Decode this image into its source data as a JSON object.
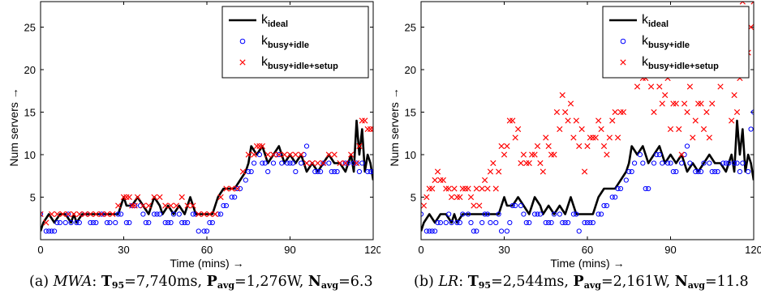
{
  "chart_data": [
    {
      "type": "line",
      "xlabel": "Time (mins) →",
      "ylabel": "Num servers →",
      "xlim": [
        0,
        120
      ],
      "ylim": [
        0,
        28
      ],
      "xticks": [
        0,
        30,
        60,
        90,
        120
      ],
      "yticks": [
        5,
        10,
        15,
        20,
        25
      ],
      "legend_position": "top-right",
      "legend": [
        {
          "main": "k",
          "sub": "ideal",
          "marker": "line",
          "color": "#000000"
        },
        {
          "main": "k",
          "sub": "busy+idle",
          "marker": "circle",
          "color": "#0000ff"
        },
        {
          "main": "k",
          "sub": "busy+idle+setup",
          "marker": "x",
          "color": "#ff0000"
        }
      ],
      "series": [
        {
          "name": "k_ideal",
          "marker": "line",
          "color": "#000000",
          "x": [
            0,
            1,
            3,
            5,
            7,
            9,
            11,
            12,
            13,
            15,
            16,
            18,
            20,
            22,
            24,
            26,
            28,
            30,
            31,
            33,
            35,
            37,
            39,
            41,
            43,
            44,
            46,
            48,
            50,
            52,
            54,
            56,
            58,
            60,
            62,
            64,
            66,
            68,
            70,
            72,
            74,
            75,
            76,
            78,
            80,
            82,
            84,
            86,
            88,
            90,
            92,
            94,
            96,
            98,
            100,
            102,
            104,
            106,
            108,
            110,
            112,
            113,
            114,
            115,
            116,
            117,
            118,
            119,
            120
          ],
          "y": [
            1,
            2,
            3,
            2,
            3,
            3,
            2,
            3,
            2,
            3,
            3,
            3,
            3,
            3,
            3,
            3,
            3,
            5,
            4,
            4,
            5,
            4,
            3,
            5,
            4,
            3,
            4,
            3,
            4,
            3,
            5,
            3,
            3,
            3,
            3,
            5,
            6,
            6,
            6,
            7,
            8,
            9,
            11,
            10,
            11,
            9,
            10,
            11,
            9,
            10,
            9,
            10,
            8,
            9,
            8,
            9,
            10,
            9,
            9,
            8,
            10,
            8,
            14,
            10,
            13,
            8,
            10,
            9,
            7
          ]
        },
        {
          "name": "k_busy+idle",
          "marker": "circle",
          "color": "#0000ff",
          "x": [
            0,
            2,
            3,
            4,
            5,
            6,
            7,
            9,
            10,
            11,
            13,
            14,
            15,
            17,
            18,
            19,
            20,
            22,
            23,
            24,
            25,
            27,
            28,
            29,
            31,
            32,
            33,
            34,
            36,
            37,
            38,
            39,
            41,
            42,
            43,
            45,
            46,
            47,
            48,
            50,
            51,
            52,
            53,
            55,
            56,
            57,
            59,
            60,
            61,
            62,
            64,
            65,
            66,
            67,
            69,
            70,
            71,
            72,
            74,
            75,
            76,
            77,
            79,
            80,
            81,
            82,
            84,
            85,
            86,
            87,
            89,
            90,
            91,
            92,
            94,
            95,
            96,
            97,
            99,
            100,
            101,
            102,
            104,
            105,
            106,
            107,
            109,
            110,
            111,
            113,
            114,
            115,
            116,
            118,
            119,
            120
          ],
          "x_note": "",
          "y": [
            3,
            1,
            1,
            1,
            1,
            2,
            2,
            2,
            3,
            2,
            2,
            2,
            3,
            3,
            2,
            2,
            2,
            3,
            3,
            2,
            2,
            2,
            3,
            3,
            2,
            2,
            4,
            4,
            4,
            3,
            2,
            2,
            3,
            3,
            3,
            2,
            2,
            2,
            3,
            3,
            2,
            2,
            2,
            3,
            3,
            1,
            1,
            1,
            2,
            2,
            3,
            3,
            4,
            4,
            5,
            5,
            6,
            6,
            7,
            8,
            8,
            9,
            10,
            9,
            9,
            8,
            9,
            10,
            10,
            9,
            9,
            9,
            9,
            8,
            9,
            10,
            11,
            9,
            8,
            8,
            8,
            9,
            9,
            8,
            8,
            8,
            9,
            9,
            9,
            9,
            9,
            8,
            9,
            8,
            8,
            8
          ]
        },
        {
          "name": "k_busy+idle+setup",
          "marker": "x",
          "color": "#ff0000",
          "x": [
            0,
            2,
            4,
            6,
            8,
            10,
            12,
            14,
            16,
            18,
            20,
            22,
            24,
            26,
            28,
            30,
            31,
            32,
            33,
            34,
            35,
            37,
            39,
            41,
            43,
            45,
            47,
            49,
            51,
            53,
            55,
            57,
            59,
            61,
            63,
            65,
            67,
            69,
            71,
            73,
            75,
            77,
            78,
            79,
            80,
            82,
            84,
            86,
            88,
            90,
            92,
            94,
            96,
            98,
            100,
            102,
            104,
            106,
            108,
            110,
            112,
            114,
            115,
            116,
            117,
            118,
            119,
            120
          ],
          "y": [
            3,
            2,
            3,
            3,
            3,
            3,
            3,
            3,
            3,
            3,
            3,
            3,
            3,
            3,
            4,
            5,
            5,
            5,
            4,
            4,
            5,
            4,
            4,
            5,
            5,
            4,
            4,
            4,
            5,
            4,
            4,
            3,
            3,
            3,
            3,
            5,
            6,
            6,
            6,
            8,
            10,
            10,
            11,
            11,
            11,
            10,
            10,
            10,
            10,
            10,
            10,
            10,
            9,
            9,
            9,
            9,
            10,
            10,
            9,
            9,
            10,
            9,
            11,
            14,
            14,
            13,
            13,
            13
          ]
        }
      ]
    },
    {
      "type": "line",
      "xlabel": "Time (mins) →",
      "ylabel": "Num servers →",
      "xlim": [
        0,
        120
      ],
      "ylim": [
        0,
        28
      ],
      "xticks": [
        0,
        30,
        60,
        90,
        120
      ],
      "yticks": [
        5,
        10,
        15,
        20,
        25
      ],
      "legend_position": "top-right",
      "legend": [
        {
          "main": "k",
          "sub": "ideal",
          "marker": "line",
          "color": "#000000"
        },
        {
          "main": "k",
          "sub": "busy+idle",
          "marker": "circle",
          "color": "#0000ff"
        },
        {
          "main": "k",
          "sub": "busy+idle+setup",
          "marker": "x",
          "color": "#ff0000"
        }
      ],
      "series": [
        {
          "name": "k_ideal",
          "marker": "line",
          "color": "#000000",
          "x": [
            0,
            1,
            3,
            5,
            7,
            9,
            11,
            12,
            13,
            15,
            16,
            18,
            20,
            22,
            24,
            26,
            28,
            30,
            31,
            33,
            35,
            37,
            39,
            41,
            43,
            44,
            46,
            48,
            50,
            52,
            54,
            56,
            58,
            60,
            62,
            64,
            66,
            68,
            70,
            72,
            74,
            75,
            76,
            78,
            80,
            82,
            84,
            86,
            88,
            90,
            92,
            94,
            96,
            98,
            100,
            102,
            104,
            106,
            108,
            110,
            112,
            113,
            114,
            115,
            116,
            117,
            118,
            119,
            120
          ],
          "y": [
            1,
            2,
            3,
            2,
            3,
            3,
            2,
            3,
            2,
            3,
            3,
            3,
            3,
            3,
            3,
            3,
            3,
            5,
            4,
            4,
            5,
            4,
            3,
            5,
            4,
            3,
            4,
            3,
            4,
            3,
            5,
            3,
            3,
            3,
            3,
            5,
            6,
            6,
            6,
            7,
            8,
            9,
            11,
            10,
            11,
            9,
            10,
            11,
            9,
            10,
            9,
            10,
            8,
            9,
            8,
            9,
            10,
            9,
            9,
            8,
            10,
            8,
            14,
            10,
            13,
            8,
            10,
            9,
            7
          ]
        },
        {
          "name": "k_busy+idle",
          "marker": "circle",
          "color": "#0000ff",
          "x": [
            0,
            2,
            3,
            4,
            5,
            6,
            7,
            9,
            10,
            11,
            13,
            14,
            15,
            17,
            18,
            19,
            20,
            22,
            23,
            24,
            25,
            27,
            28,
            29,
            31,
            32,
            33,
            34,
            36,
            37,
            38,
            39,
            41,
            42,
            43,
            45,
            46,
            47,
            48,
            50,
            51,
            52,
            53,
            55,
            56,
            57,
            59,
            60,
            61,
            62,
            64,
            65,
            66,
            67,
            69,
            70,
            71,
            72,
            74,
            75,
            76,
            77,
            79,
            80,
            81,
            82,
            84,
            85,
            86,
            87,
            89,
            90,
            91,
            92,
            94,
            95,
            96,
            97,
            99,
            100,
            101,
            102,
            104,
            105,
            106,
            107,
            109,
            110,
            111,
            113,
            114,
            115,
            116,
            118,
            119,
            120
          ],
          "y": [
            3,
            1,
            1,
            1,
            1,
            2,
            2,
            2,
            3,
            2,
            2,
            2,
            3,
            3,
            2,
            1,
            1,
            2,
            3,
            3,
            2,
            2,
            3,
            1,
            1,
            2,
            4,
            4,
            4,
            3,
            2,
            2,
            3,
            3,
            3,
            2,
            2,
            2,
            3,
            3,
            2,
            2,
            2,
            3,
            3,
            1,
            2,
            2,
            2,
            2,
            3,
            3,
            4,
            4,
            5,
            5,
            6,
            6,
            7,
            8,
            8,
            9,
            10,
            9,
            6,
            6,
            9,
            10,
            10,
            9,
            9,
            9,
            8,
            8,
            9,
            10,
            11,
            9,
            8,
            8,
            8,
            9,
            9,
            8,
            8,
            8,
            9,
            9,
            9,
            9,
            9,
            8,
            9,
            8,
            13,
            15
          ]
        },
        {
          "name": "k_busy+idle+setup",
          "marker": "x",
          "color": "#ff0000",
          "x": [
            1,
            2,
            3,
            4,
            5,
            6,
            7,
            8,
            9,
            10,
            11,
            12,
            13,
            14,
            15,
            16,
            17,
            18,
            19,
            20,
            21,
            22,
            23,
            24,
            25,
            26,
            27,
            28,
            29,
            30,
            31,
            32,
            33,
            34,
            35,
            36,
            37,
            38,
            39,
            40,
            41,
            42,
            43,
            44,
            45,
            46,
            47,
            48,
            49,
            50,
            51,
            52,
            53,
            54,
            55,
            56,
            57,
            58,
            59,
            60,
            61,
            62,
            63,
            64,
            65,
            66,
            67,
            68,
            69,
            70,
            71,
            72,
            73,
            74,
            75,
            76,
            77,
            78,
            79,
            80,
            81,
            82,
            83,
            84,
            85,
            86,
            87,
            88,
            89,
            90,
            91,
            92,
            93,
            94,
            95,
            96,
            97,
            98,
            99,
            100,
            101,
            102,
            103,
            104,
            105,
            106,
            107,
            108,
            109,
            110,
            111,
            112,
            113,
            114,
            115,
            116,
            117,
            118,
            119,
            120
          ],
          "y": [
            4,
            5,
            6,
            6,
            7,
            8,
            7,
            7,
            6,
            6,
            5,
            6,
            5,
            5,
            6,
            6,
            6,
            5,
            4,
            6,
            4,
            6,
            7,
            6,
            8,
            9,
            6,
            8,
            11,
            10,
            11,
            14,
            14,
            12,
            13,
            9,
            10,
            9,
            9,
            10,
            10,
            11,
            9,
            8,
            12,
            11,
            10,
            10,
            15,
            13,
            17,
            15,
            14,
            16,
            12,
            14,
            11,
            13,
            8,
            11,
            12,
            12,
            12,
            14,
            13,
            11,
            10,
            12,
            14,
            15,
            12,
            15,
            15,
            24,
            23,
            20,
            22,
            18,
            21,
            19,
            19,
            22,
            18,
            15,
            20,
            18,
            16,
            17,
            19,
            13,
            16,
            16,
            13,
            10,
            16,
            15,
            18,
            12,
            14,
            16,
            16,
            13,
            15,
            12,
            16,
            21,
            23,
            18,
            23,
            22,
            20,
            14,
            17,
            15,
            19,
            28,
            26,
            22,
            25,
            28
          ]
        }
      ]
    }
  ],
  "captions": [
    {
      "tag": "(a)",
      "name": "MWA",
      "t_label": "T",
      "t_sub": "95",
      "t_value": "=7,740ms,",
      "p_label": "P",
      "p_sub": "avg",
      "p_value": "=1,276W,",
      "n_label": "N",
      "n_sub": "avg",
      "n_value": "=6.3"
    },
    {
      "tag": "(b)",
      "name": "LR",
      "t_label": "T",
      "t_sub": "95",
      "t_value": "=2,544ms,",
      "p_label": "P",
      "p_sub": "avg",
      "p_value": "=2,161W,",
      "n_label": "N",
      "n_sub": "avg",
      "n_value": "=11.8"
    }
  ]
}
